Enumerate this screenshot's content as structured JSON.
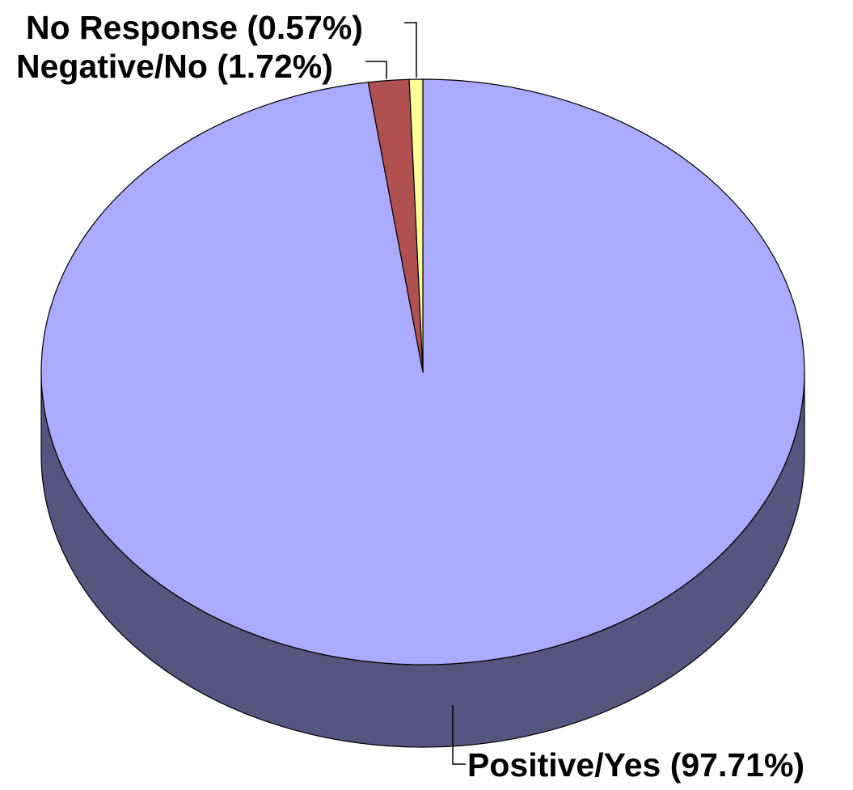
{
  "chart_data": {
    "type": "pie",
    "style": "3d",
    "title": "",
    "slices": [
      {
        "label": "Positive/Yes",
        "value": 97.71,
        "display": "Positive/Yes (97.71%)",
        "color": "#aaaaff",
        "side_color": "#55557f"
      },
      {
        "label": "Negative/No",
        "value": 1.72,
        "display": "Negative/No (1.72%)",
        "color": "#b05050",
        "side_color": "#6a3030"
      },
      {
        "label": "No Response",
        "value": 0.57,
        "display": "No Response (0.57%)",
        "color": "#ffff99",
        "side_color": "#99995c"
      }
    ],
    "legend": "none",
    "data_labels": "outside with leader lines"
  }
}
